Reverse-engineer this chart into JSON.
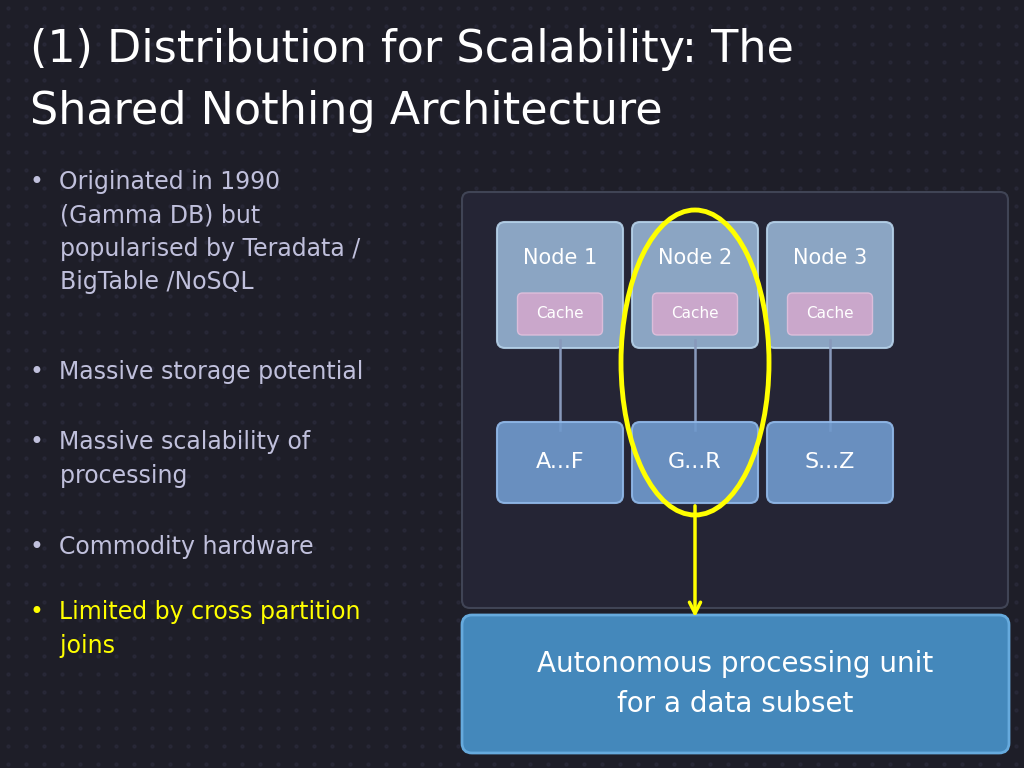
{
  "title_line1": "(1) Distribution for Scalability: The",
  "title_line2": "Shared Nothing Architecture",
  "title_color": "#ffffff",
  "title_fontsize": 32,
  "bg_color": "#1e1e28",
  "bullet_color": "#c0c0dc",
  "bullet_yellow": "#ffff00",
  "bullet_fontsize": 17,
  "bullets": [
    {
      "text": "Originated in 1990\n  (Gamma DB) but\n  popularised by Teradata /\n  BigTable /NoSQL",
      "color": "#c0c0dc"
    },
    {
      "text": "Massive storage potential",
      "color": "#c0c0dc"
    },
    {
      "text": "Massive scalability of\n  processing",
      "color": "#c0c0dc"
    },
    {
      "text": "Commodity hardware",
      "color": "#c0c0dc"
    },
    {
      "text": "Limited by cross partition\n  joins",
      "color": "#ffff00"
    }
  ],
  "node_labels": [
    "Node 1",
    "Node 2",
    "Node 3"
  ],
  "data_labels": [
    "A...F",
    "G...R",
    "S...Z"
  ],
  "node_face": "#9ab8d8",
  "node_edge": "#b8d4ec",
  "cache_face": "#d0a8cc",
  "cache_edge": "#e0c0dc",
  "data_face": "#7099cc",
  "data_edge": "#90b8e8",
  "diag_bg": "#252535",
  "diag_edge": "#404455",
  "ellipse_color": "#ffff00",
  "arrow_color": "#ffff00",
  "callout_face": "#4488bb",
  "callout_edge": "#66aadd",
  "callout_text": "Autonomous processing unit\nfor a data subset",
  "callout_text_color": "#ffffff",
  "callout_fontsize": 20
}
